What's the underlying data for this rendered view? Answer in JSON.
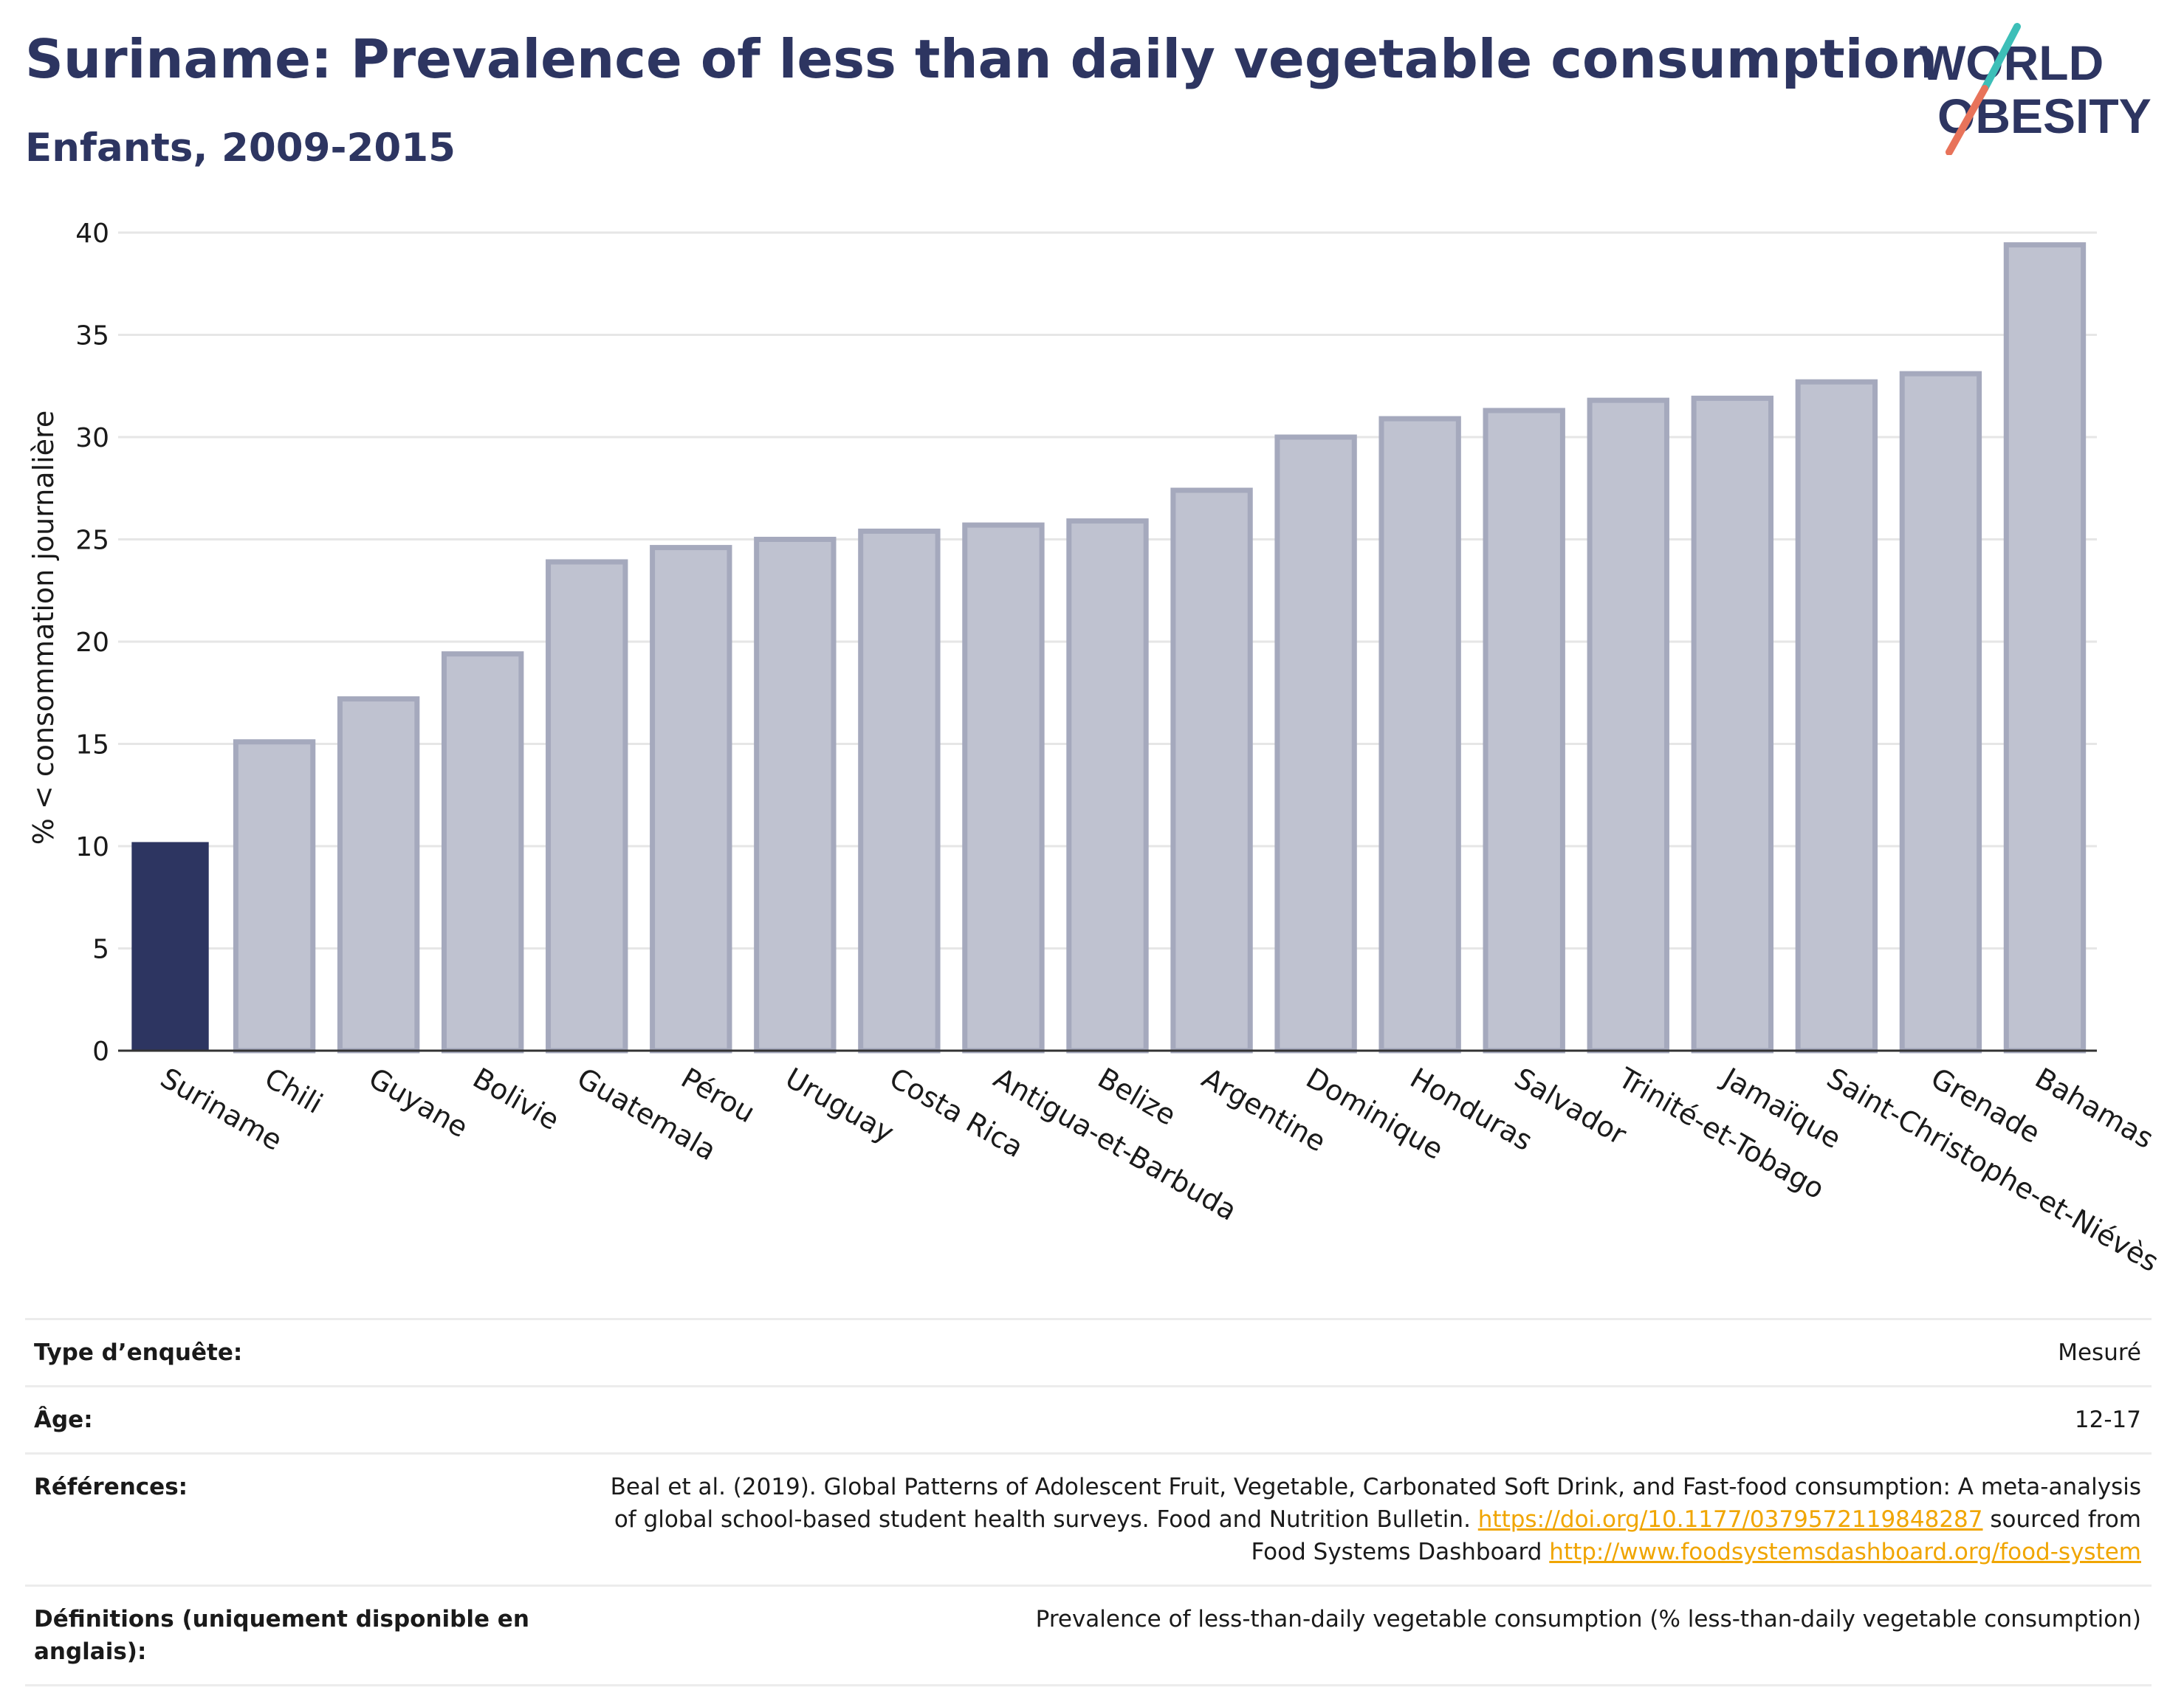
{
  "title": "Suriname: Prevalence of less than daily vegetable consumption",
  "subtitle": "Enfants, 2009-2015",
  "logo": {
    "line1": "WORLD",
    "line2": "OBESITY",
    "accent_colors": [
      "#3dbfb8",
      "#e8735a"
    ]
  },
  "colors": {
    "highlight": "#2d3561",
    "bar_fill": "#bfc2d0",
    "bar_stroke": "#a5a9bd",
    "grid": "#e6e6e6"
  },
  "chart_data": {
    "type": "bar",
    "title": "",
    "xlabel": "",
    "ylabel": "% < consommation journalière",
    "ylim": [
      0,
      40
    ],
    "yticks": [
      0,
      5,
      10,
      15,
      20,
      25,
      30,
      35,
      40
    ],
    "grid": true,
    "highlight": "Suriname",
    "categories": [
      "Suriname",
      "Chili",
      "Guyane",
      "Bolivie",
      "Guatemala",
      "Pérou",
      "Uruguay",
      "Costa Rica",
      "Antigua-et-Barbuda",
      "Belize",
      "Argentine",
      "Dominique",
      "Honduras",
      "Salvador",
      "Trinité-et-Tobago",
      "Jamaïque",
      "Saint-Christophe-et-Niévès",
      "Grenade",
      "Bahamas"
    ],
    "values": [
      10.2,
      15.1,
      17.2,
      19.4,
      23.9,
      24.6,
      25.0,
      25.4,
      25.7,
      25.9,
      27.4,
      30.0,
      30.9,
      31.3,
      31.8,
      31.9,
      32.7,
      33.1,
      39.4
    ]
  },
  "meta": {
    "survey_label": "Type d’enquête:",
    "survey_value": "Mesuré",
    "age_label": "Âge:",
    "age_value": "12-17",
    "refs_label": "Références:",
    "refs_text_1": "Beal et al. (2019). Global Patterns of Adolescent Fruit, Vegetable, Carbonated Soft Drink, and Fast-food consumption: A meta-analysis of global school-based student health surveys. Food and Nutrition Bulletin. ",
    "refs_link_1": "https://doi.org/10.1177/0379572119848287",
    "refs_text_2": " sourced from Food Systems Dashboard ",
    "refs_link_2": "http://www.foodsystemsdashboard.org/food-system",
    "defs_label": "Définitions (uniquement disponible en anglais):",
    "defs_value": "Prevalence of less-than-daily vegetable consumption (% less-than-daily vegetable consumption)"
  }
}
